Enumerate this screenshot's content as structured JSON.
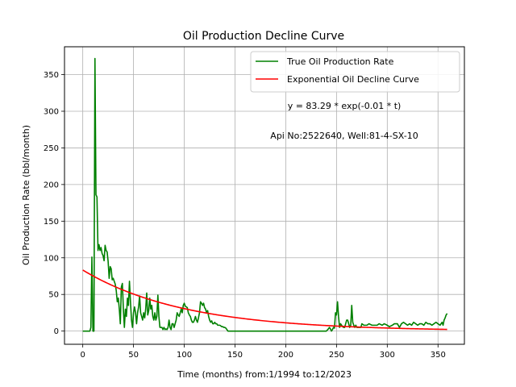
{
  "chart_data": {
    "type": "line",
    "title": "Oil Production Decline Curve",
    "xlabel": "Time (months) from:1/1994 to:12/2023",
    "ylabel": "Oil Production Rate (bbl/month)",
    "xlim": [
      -18,
      376
    ],
    "ylim": [
      -18,
      388
    ],
    "x_ticks": [
      0,
      50,
      100,
      150,
      200,
      250,
      300,
      350
    ],
    "y_ticks": [
      0,
      50,
      100,
      150,
      200,
      250,
      300,
      350
    ],
    "grid": true,
    "legend_position": "top-right",
    "annotations": [
      "y = 83.29 * exp(-0.01 * t)",
      "Api No:2522640, Well:81-4-SX-10"
    ],
    "series": [
      {
        "name": "True Oil Production Rate",
        "color": "#008000",
        "points": [
          [
            0,
            0
          ],
          [
            5,
            0
          ],
          [
            7,
            0
          ],
          [
            8,
            5
          ],
          [
            9,
            101
          ],
          [
            10,
            0
          ],
          [
            11,
            0
          ],
          [
            12,
            372
          ],
          [
            13,
            186
          ],
          [
            14,
            183
          ],
          [
            15,
            110
          ],
          [
            16,
            118
          ],
          [
            17,
            110
          ],
          [
            18,
            114
          ],
          [
            19,
            106
          ],
          [
            20,
            103
          ],
          [
            21,
            96
          ],
          [
            22,
            117
          ],
          [
            23,
            110
          ],
          [
            24,
            108
          ],
          [
            25,
            95
          ],
          [
            26,
            72
          ],
          [
            27,
            88
          ],
          [
            28,
            85
          ],
          [
            29,
            70
          ],
          [
            30,
            72
          ],
          [
            31,
            68
          ],
          [
            32,
            64
          ],
          [
            33,
            55
          ],
          [
            34,
            40
          ],
          [
            35,
            45
          ],
          [
            36,
            30
          ],
          [
            37,
            10
          ],
          [
            38,
            60
          ],
          [
            39,
            65
          ],
          [
            40,
            30
          ],
          [
            41,
            5
          ],
          [
            42,
            30
          ],
          [
            43,
            20
          ],
          [
            44,
            45
          ],
          [
            45,
            35
          ],
          [
            46,
            68
          ],
          [
            47,
            40
          ],
          [
            48,
            15
          ],
          [
            49,
            5
          ],
          [
            50,
            25
          ],
          [
            51,
            33
          ],
          [
            52,
            25
          ],
          [
            53,
            10
          ],
          [
            54,
            25
          ],
          [
            55,
            33
          ],
          [
            56,
            48
          ],
          [
            57,
            25
          ],
          [
            58,
            20
          ],
          [
            59,
            15
          ],
          [
            60,
            25
          ],
          [
            61,
            18
          ],
          [
            62,
            30
          ],
          [
            63,
            52
          ],
          [
            64,
            22
          ],
          [
            65,
            28
          ],
          [
            66,
            45
          ],
          [
            67,
            30
          ],
          [
            68,
            35
          ],
          [
            69,
            20
          ],
          [
            70,
            15
          ],
          [
            71,
            25
          ],
          [
            72,
            15
          ],
          [
            73,
            20
          ],
          [
            74,
            49
          ],
          [
            75,
            20
          ],
          [
            76,
            5
          ],
          [
            77,
            5
          ],
          [
            78,
            5
          ],
          [
            79,
            2
          ],
          [
            80,
            5
          ],
          [
            81,
            2
          ],
          [
            82,
            3
          ],
          [
            83,
            2
          ],
          [
            84,
            5
          ],
          [
            85,
            15
          ],
          [
            86,
            5
          ],
          [
            87,
            2
          ],
          [
            88,
            10
          ],
          [
            89,
            10
          ],
          [
            90,
            5
          ],
          [
            91,
            10
          ],
          [
            92,
            15
          ],
          [
            93,
            25
          ],
          [
            94,
            22
          ],
          [
            95,
            20
          ],
          [
            96,
            25
          ],
          [
            97,
            30
          ],
          [
            98,
            25
          ],
          [
            99,
            35
          ],
          [
            100,
            38
          ],
          [
            101,
            34
          ],
          [
            102,
            33
          ],
          [
            103,
            32
          ],
          [
            104,
            25
          ],
          [
            105,
            22
          ],
          [
            106,
            20
          ],
          [
            107,
            15
          ],
          [
            108,
            12
          ],
          [
            109,
            12
          ],
          [
            110,
            15
          ],
          [
            111,
            20
          ],
          [
            112,
            15
          ],
          [
            113,
            12
          ],
          [
            114,
            18
          ],
          [
            115,
            25
          ],
          [
            116,
            40
          ],
          [
            117,
            38
          ],
          [
            118,
            35
          ],
          [
            119,
            38
          ],
          [
            120,
            32
          ],
          [
            121,
            30
          ],
          [
            122,
            25
          ],
          [
            123,
            28
          ],
          [
            124,
            20
          ],
          [
            125,
            15
          ],
          [
            126,
            12
          ],
          [
            127,
            14
          ],
          [
            128,
            10
          ],
          [
            129,
            10
          ],
          [
            130,
            12
          ],
          [
            131,
            10
          ],
          [
            132,
            10
          ],
          [
            133,
            8
          ],
          [
            134,
            8
          ],
          [
            135,
            8
          ],
          [
            136,
            7
          ],
          [
            137,
            6
          ],
          [
            138,
            6
          ],
          [
            139,
            5
          ],
          [
            140,
            5
          ],
          [
            141,
            4
          ],
          [
            142,
            2
          ],
          [
            143,
            0
          ],
          [
            145,
            0
          ],
          [
            150,
            0
          ],
          [
            160,
            0
          ],
          [
            170,
            0
          ],
          [
            180,
            0
          ],
          [
            190,
            0
          ],
          [
            200,
            0
          ],
          [
            210,
            0
          ],
          [
            220,
            0
          ],
          [
            230,
            0
          ],
          [
            240,
            0
          ],
          [
            242,
            3
          ],
          [
            243,
            5
          ],
          [
            244,
            3
          ],
          [
            245,
            0
          ],
          [
            246,
            2
          ],
          [
            247,
            5
          ],
          [
            248,
            4
          ],
          [
            249,
            25
          ],
          [
            250,
            22
          ],
          [
            251,
            40
          ],
          [
            252,
            20
          ],
          [
            253,
            5
          ],
          [
            254,
            10
          ],
          [
            255,
            8
          ],
          [
            256,
            6
          ],
          [
            257,
            5
          ],
          [
            258,
            5
          ],
          [
            259,
            10
          ],
          [
            260,
            15
          ],
          [
            261,
            15
          ],
          [
            262,
            10
          ],
          [
            263,
            5
          ],
          [
            264,
            8
          ],
          [
            265,
            35
          ],
          [
            266,
            12
          ],
          [
            267,
            8
          ],
          [
            268,
            5
          ],
          [
            269,
            8
          ],
          [
            270,
            5
          ],
          [
            272,
            5
          ],
          [
            274,
            5
          ],
          [
            275,
            10
          ],
          [
            277,
            8
          ],
          [
            280,
            8
          ],
          [
            282,
            10
          ],
          [
            285,
            8
          ],
          [
            287,
            8
          ],
          [
            290,
            8
          ],
          [
            292,
            10
          ],
          [
            295,
            8
          ],
          [
            297,
            10
          ],
          [
            300,
            8
          ],
          [
            302,
            6
          ],
          [
            305,
            8
          ],
          [
            307,
            10
          ],
          [
            310,
            10
          ],
          [
            312,
            5
          ],
          [
            314,
            10
          ],
          [
            316,
            12
          ],
          [
            318,
            10
          ],
          [
            320,
            8
          ],
          [
            322,
            10
          ],
          [
            324,
            8
          ],
          [
            326,
            12
          ],
          [
            328,
            10
          ],
          [
            330,
            8
          ],
          [
            332,
            10
          ],
          [
            334,
            10
          ],
          [
            336,
            8
          ],
          [
            338,
            12
          ],
          [
            340,
            10
          ],
          [
            342,
            10
          ],
          [
            344,
            8
          ],
          [
            346,
            10
          ],
          [
            348,
            12
          ],
          [
            350,
            10
          ],
          [
            352,
            8
          ],
          [
            354,
            12
          ],
          [
            355,
            8
          ],
          [
            356,
            15
          ],
          [
            357,
            18
          ],
          [
            358,
            22
          ],
          [
            359,
            24
          ]
        ]
      },
      {
        "name": "Exponential Oil Decline Curve",
        "color": "#ff0000",
        "model": {
          "a": 83.29,
          "b": -0.01
        },
        "x_range": [
          0,
          359
        ]
      }
    ]
  }
}
